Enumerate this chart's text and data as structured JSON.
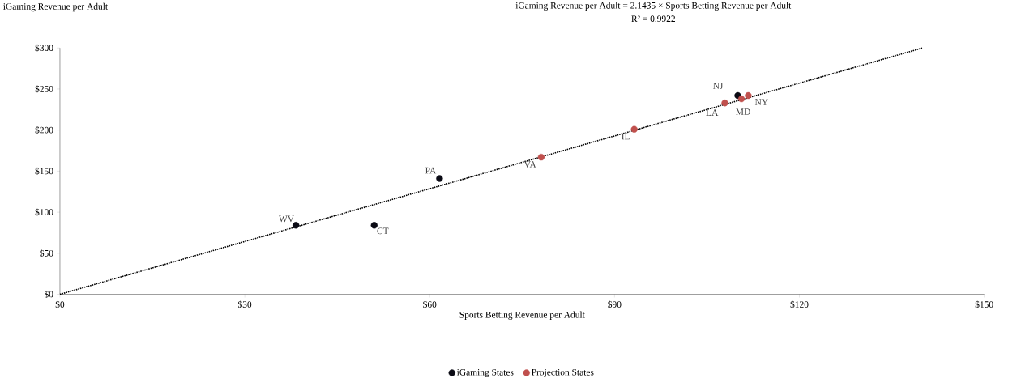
{
  "chart_data": {
    "type": "scatter",
    "xlabel": "Sports Betting Revenue per Adult",
    "ylabel": "iGaming Revenue per Adult",
    "xlim": [
      0,
      150
    ],
    "ylim": [
      0,
      300
    ],
    "xticks": [
      {
        "value": 0,
        "label": "$0"
      },
      {
        "value": 30,
        "label": "$30"
      },
      {
        "value": 60,
        "label": "$60"
      },
      {
        "value": 90,
        "label": "$90"
      },
      {
        "value": 120,
        "label": "$120"
      },
      {
        "value": 150,
        "label": "$150"
      }
    ],
    "yticks": [
      {
        "value": 0,
        "label": "$0"
      },
      {
        "value": 50,
        "label": "$50"
      },
      {
        "value": 100,
        "label": "$100"
      },
      {
        "value": 150,
        "label": "$150"
      },
      {
        "value": 200,
        "label": "$200"
      },
      {
        "value": 250,
        "label": "$250"
      },
      {
        "value": 300,
        "label": "$300"
      }
    ],
    "grid": false,
    "legend": "bottom",
    "series": [
      {
        "name": "iGaming States",
        "color": "#0a0a14",
        "marker": "circle",
        "x": [
          38.3,
          51.0,
          61.6,
          110.0
        ],
        "values": [
          84,
          84,
          141,
          242
        ]
      },
      {
        "name": "Projection States",
        "color": "#c0504d",
        "marker": "circle",
        "x": [
          78.1,
          93.2,
          107.9,
          110.6,
          111.7
        ],
        "values": [
          167,
          201,
          233,
          238,
          242
        ]
      },
      {
        "type": "line",
        "color": "#000000",
        "line_style": "dotted",
        "marker": "none",
        "x": [
          0,
          140
        ],
        "values": [
          0,
          300
        ]
      }
    ],
    "annotations": [
      "iGaming Revenue per Adult = 2.1435 × Sports Betting Revenue per Adult",
      "R² = 0.9922",
      {
        "text": "WV",
        "x": 38.3,
        "y": 84
      },
      {
        "text": "CT",
        "x": 51.0,
        "y": 84
      },
      {
        "text": "PA",
        "x": 61.6,
        "y": 141
      },
      {
        "text": "VA",
        "x": 78.1,
        "y": 167
      },
      {
        "text": "IL",
        "x": 93.2,
        "y": 201
      },
      {
        "text": "LA",
        "x": 107.9,
        "y": 233
      },
      {
        "text": "NJ",
        "x": 110.0,
        "y": 242
      },
      {
        "text": "MD",
        "x": 110.6,
        "y": 238
      },
      {
        "text": "NY",
        "x": 111.7,
        "y": 242
      }
    ]
  }
}
